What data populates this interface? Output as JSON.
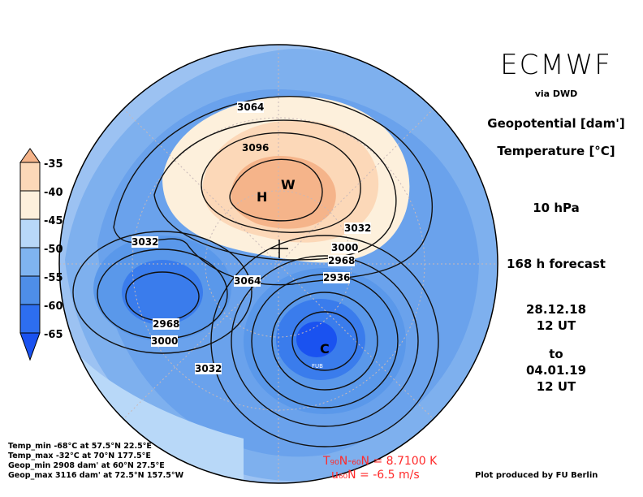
{
  "header": {
    "model": "ECMWF",
    "via": "via DWD",
    "variable1": "Geopotential [dam']",
    "variable2": "Temperature [°C]",
    "level": "10 hPa",
    "forecast": "168 h forecast",
    "init_date": "28.12.18",
    "init_time": "12 UT",
    "to": "to",
    "valid_date": "04.01.19",
    "valid_time": "12 UT"
  },
  "colorbar": {
    "labels": [
      "-35",
      "-40",
      "-45",
      "-50",
      "-55",
      "-60",
      "-65"
    ],
    "colors": [
      "#f5b48a",
      "#fcd8b8",
      "#fdf0dc",
      "#b8d8f8",
      "#7fb4f0",
      "#4e8ee8",
      "#2d6ef0",
      "#1a52f0"
    ]
  },
  "contours": {
    "labels": [
      "3064",
      "3096",
      "3032",
      "3000",
      "2968",
      "2936",
      "3032",
      "3064",
      "2968",
      "3000",
      "3032"
    ]
  },
  "markers": {
    "high1": "H",
    "warm": "W",
    "cold": "C",
    "city": "FUB"
  },
  "stats": {
    "temp_min": "Temp_min  -68°C at 57.5°N 22.5°E",
    "temp_max": "Temp_max  -32°C at 70°N 177.5°E",
    "geop_min": "Geop_min  2908 dam' at 60°N 27.5°E",
    "geop_max": "Geop_max  3116 dam' at 72.5°N 157.5°W"
  },
  "indices": {
    "t_line": "T₉₀N-₆₀N  =  8.7100 K",
    "u_line": "u₆₀N  =  -6.5 m/s"
  },
  "credit": "Plot produced by FU Berlin"
}
